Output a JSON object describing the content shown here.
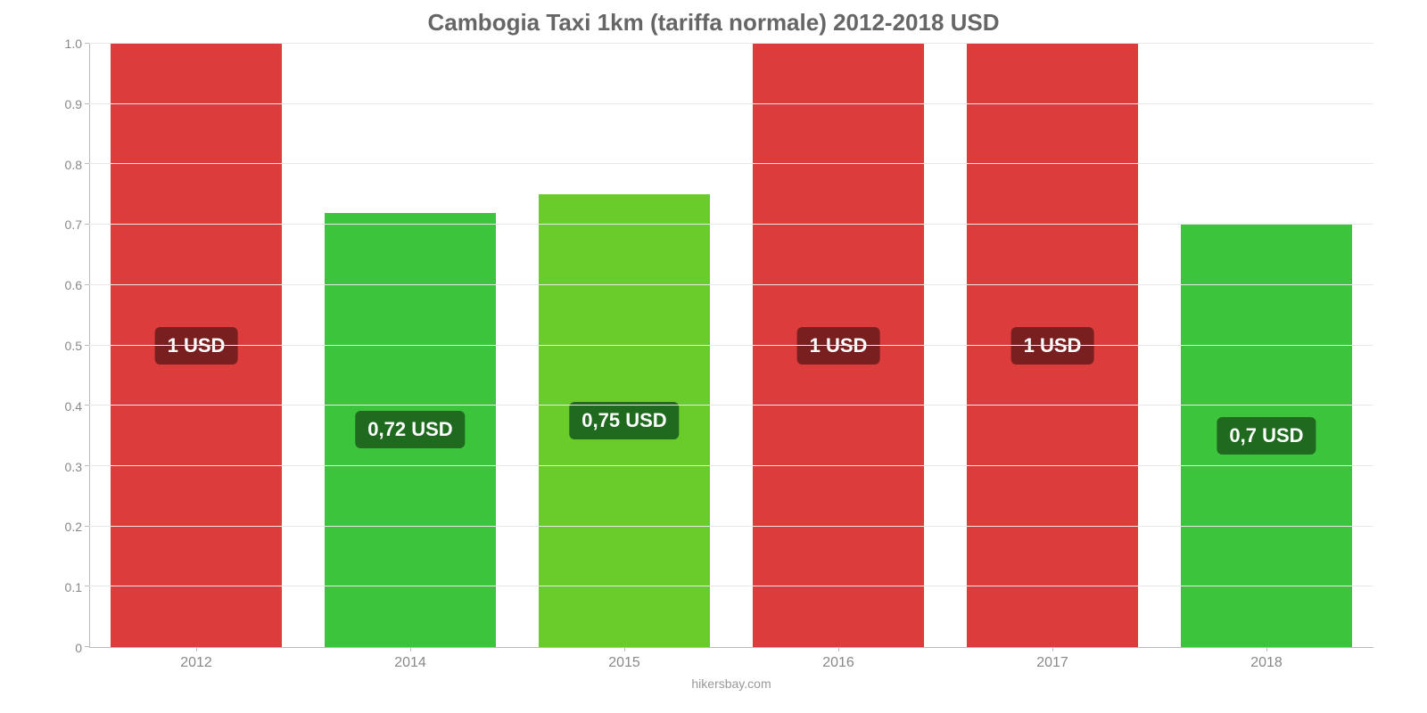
{
  "chart": {
    "type": "bar",
    "title": "Cambogia Taxi 1km (tariffa normale) 2012-2018 USD",
    "title_fontsize": 26,
    "title_color": "#666666",
    "background_color": "#ffffff",
    "grid_color": "#e8e8e8",
    "axis_color": "#bbbbbb",
    "tick_color": "#888888",
    "y_axis": {
      "min": 0,
      "max": 1.0,
      "step": 0.1,
      "ticks": [
        "0",
        "0.1",
        "0.2",
        "0.3",
        "0.4",
        "0.5",
        "0.6",
        "0.7",
        "0.8",
        "0.9",
        "1.0"
      ],
      "label_fontsize": 14
    },
    "x_axis": {
      "categories": [
        "2012",
        "2014",
        "2015",
        "2016",
        "2017",
        "2018"
      ],
      "label_fontsize": 16
    },
    "bars": [
      {
        "year": "2012",
        "value": 1.0,
        "color": "#dc3c3c",
        "label": "1 USD",
        "label_bg": "#7a1f1f"
      },
      {
        "year": "2014",
        "value": 0.72,
        "color": "#3dc43d",
        "label": "0,72 USD",
        "label_bg": "#1f6a1f"
      },
      {
        "year": "2015",
        "value": 0.75,
        "color": "#6acc2a",
        "label": "0,75 USD",
        "label_bg": "#1f6a1f"
      },
      {
        "year": "2016",
        "value": 1.0,
        "color": "#dc3c3c",
        "label": "1 USD",
        "label_bg": "#7a1f1f"
      },
      {
        "year": "2017",
        "value": 1.0,
        "color": "#dc3c3c",
        "label": "1 USD",
        "label_bg": "#7a1f1f"
      },
      {
        "year": "2018",
        "value": 0.7,
        "color": "#3dc43d",
        "label": "0,7 USD",
        "label_bg": "#1f6a1f"
      }
    ],
    "bar_width_pct": 80,
    "bar_label_fontsize": 22,
    "bar_label_color": "#ffffff",
    "attribution": "hikersbay.com"
  }
}
